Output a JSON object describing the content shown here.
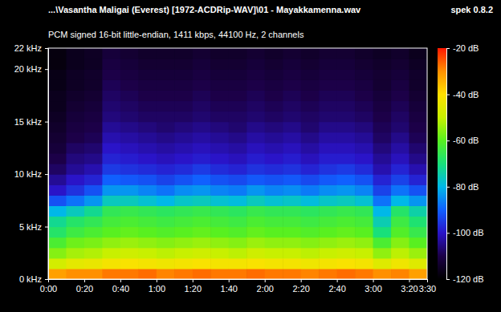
{
  "chart_data": {
    "type": "heatmap",
    "title": "...\\Vasantha Maligai (Everest) [1972-ACDRip-WAV]\\01 - Mayakkamenna.wav",
    "subtitle": "PCM signed 16-bit little-endian, 1411 kbps, 44100 Hz, 2 channels",
    "annotation": "spek 0.8.2",
    "xlim": [
      0,
      210
    ],
    "ylim": [
      0,
      22
    ],
    "xticks": [
      {
        "value": 0,
        "label": "0:00"
      },
      {
        "value": 20,
        "label": "0:20"
      },
      {
        "value": 40,
        "label": "0:40"
      },
      {
        "value": 60,
        "label": "1:00"
      },
      {
        "value": 80,
        "label": "1:20"
      },
      {
        "value": 100,
        "label": "1:40"
      },
      {
        "value": 120,
        "label": "2:00"
      },
      {
        "value": 140,
        "label": "2:20"
      },
      {
        "value": 160,
        "label": "2:40"
      },
      {
        "value": 180,
        "label": "3:00"
      },
      {
        "value": 200,
        "label": "3:20"
      },
      {
        "value": 210,
        "label": "3:30"
      }
    ],
    "yticks": [
      {
        "value": 0,
        "label": "0 kHz"
      },
      {
        "value": 5,
        "label": "5 kHz"
      },
      {
        "value": 10,
        "label": "10 kHz"
      },
      {
        "value": 15,
        "label": "15 kHz"
      },
      {
        "value": 20,
        "label": "20 kHz"
      },
      {
        "value": 22,
        "label": "22 kHz"
      }
    ],
    "x_edges": [
      0,
      10,
      20,
      30,
      40,
      50,
      60,
      70,
      80,
      90,
      100,
      110,
      120,
      130,
      140,
      150,
      160,
      170,
      180,
      190,
      200,
      210
    ],
    "y_edges": [
      0,
      1,
      2,
      3,
      4,
      5,
      6,
      7,
      8,
      9,
      10,
      11,
      12,
      13,
      14,
      15,
      16,
      17,
      18,
      19,
      20,
      21,
      22
    ],
    "cells": [
      [
        -32,
        -48,
        -56,
        -62,
        -68,
        -72,
        -80,
        -92,
        -100,
        -104,
        -108,
        -110,
        -112,
        -113,
        -114,
        -115,
        -116,
        -116,
        -117,
        -117,
        -118,
        -118
      ],
      [
        -30,
        -45,
        -53,
        -58,
        -64,
        -68,
        -76,
        -88,
        -96,
        -100,
        -104,
        -106,
        -108,
        -110,
        -111,
        -112,
        -113,
        -114,
        -115,
        -115,
        -116,
        -116
      ],
      [
        -30,
        -44,
        -52,
        -57,
        -62,
        -66,
        -72,
        -84,
        -92,
        -98,
        -102,
        -105,
        -107,
        -109,
        -110,
        -111,
        -112,
        -113,
        -114,
        -114,
        -115,
        -115
      ],
      [
        -28,
        -42,
        -50,
        -55,
        -60,
        -63,
        -66,
        -76,
        -84,
        -90,
        -95,
        -98,
        -100,
        -102,
        -104,
        -106,
        -107,
        -108,
        -109,
        -110,
        -111,
        -112
      ],
      [
        -28,
        -41,
        -49,
        -54,
        -59,
        -62,
        -65,
        -76,
        -84,
        -91,
        -96,
        -99,
        -101,
        -103,
        -105,
        -107,
        -108,
        -109,
        -110,
        -111,
        -112,
        -113
      ],
      [
        -27,
        -42,
        -50,
        -55,
        -60,
        -63,
        -66,
        -78,
        -86,
        -92,
        -97,
        -100,
        -102,
        -104,
        -106,
        -108,
        -109,
        -110,
        -111,
        -112,
        -113,
        -114
      ],
      [
        -29,
        -43,
        -51,
        -56,
        -61,
        -64,
        -67,
        -80,
        -88,
        -94,
        -98,
        -101,
        -103,
        -105,
        -107,
        -108,
        -109,
        -110,
        -111,
        -112,
        -113,
        -114
      ],
      [
        -28,
        -42,
        -50,
        -55,
        -60,
        -63,
        -66,
        -77,
        -85,
        -92,
        -97,
        -100,
        -102,
        -104,
        -106,
        -108,
        -109,
        -110,
        -111,
        -112,
        -113,
        -114
      ],
      [
        -27,
        -41,
        -49,
        -54,
        -59,
        -62,
        -65,
        -76,
        -84,
        -90,
        -95,
        -99,
        -101,
        -103,
        -105,
        -107,
        -108,
        -109,
        -110,
        -111,
        -112,
        -113
      ],
      [
        -28,
        -42,
        -50,
        -55,
        -60,
        -63,
        -66,
        -78,
        -86,
        -92,
        -97,
        -100,
        -102,
        -104,
        -106,
        -108,
        -109,
        -110,
        -111,
        -112,
        -113,
        -114
      ],
      [
        -28,
        -42,
        -51,
        -56,
        -61,
        -64,
        -67,
        -79,
        -87,
        -93,
        -98,
        -101,
        -103,
        -105,
        -107,
        -108,
        -109,
        -110,
        -111,
        -112,
        -113,
        -114
      ],
      [
        -27,
        -41,
        -49,
        -54,
        -59,
        -62,
        -65,
        -76,
        -84,
        -91,
        -96,
        -99,
        -101,
        -103,
        -105,
        -107,
        -108,
        -109,
        -110,
        -111,
        -112,
        -113
      ],
      [
        -28,
        -42,
        -50,
        -55,
        -60,
        -63,
        -66,
        -78,
        -86,
        -92,
        -97,
        -100,
        -102,
        -104,
        -106,
        -108,
        -109,
        -110,
        -111,
        -112,
        -113,
        -114
      ],
      [
        -28,
        -42,
        -50,
        -55,
        -60,
        -63,
        -66,
        -77,
        -85,
        -91,
        -96,
        -99,
        -101,
        -103,
        -105,
        -107,
        -108,
        -109,
        -110,
        -111,
        -112,
        -113
      ],
      [
        -29,
        -43,
        -51,
        -56,
        -61,
        -64,
        -67,
        -79,
        -87,
        -93,
        -98,
        -101,
        -103,
        -105,
        -107,
        -108,
        -109,
        -110,
        -111,
        -112,
        -113,
        -114
      ],
      [
        -28,
        -42,
        -50,
        -55,
        -60,
        -63,
        -66,
        -77,
        -85,
        -91,
        -96,
        -99,
        -101,
        -103,
        -105,
        -107,
        -108,
        -109,
        -110,
        -111,
        -112,
        -113
      ],
      [
        -27,
        -41,
        -49,
        -54,
        -59,
        -62,
        -65,
        -76,
        -84,
        -90,
        -95,
        -99,
        -101,
        -103,
        -105,
        -107,
        -108,
        -109,
        -110,
        -111,
        -112,
        -113
      ],
      [
        -28,
        -42,
        -50,
        -55,
        -60,
        -63,
        -66,
        -78,
        -86,
        -92,
        -97,
        -100,
        -102,
        -104,
        -106,
        -108,
        -109,
        -110,
        -111,
        -112,
        -113,
        -114
      ],
      [
        -30,
        -46,
        -55,
        -62,
        -70,
        -75,
        -80,
        -88,
        -94,
        -98,
        -102,
        -104,
        -106,
        -108,
        -109,
        -110,
        -111,
        -112,
        -113,
        -113,
        -114,
        -115
      ],
      [
        -29,
        -43,
        -51,
        -56,
        -61,
        -64,
        -68,
        -80,
        -88,
        -94,
        -98,
        -101,
        -103,
        -105,
        -107,
        -108,
        -109,
        -110,
        -111,
        -112,
        -113,
        -114
      ],
      [
        -32,
        -46,
        -54,
        -60,
        -65,
        -69,
        -74,
        -84,
        -92,
        -98,
        -102,
        -105,
        -107,
        -109,
        -110,
        -111,
        -112,
        -113,
        -114,
        -114,
        -115,
        -116
      ]
    ],
    "colorbar": {
      "range": [
        -120,
        -20
      ],
      "ticks": [
        {
          "value": -20,
          "label": "-20 dB"
        },
        {
          "value": -40,
          "label": "-40 dB"
        },
        {
          "value": -60,
          "label": "-60 dB"
        },
        {
          "value": -80,
          "label": "-80 dB"
        },
        {
          "value": -100,
          "label": "-100 dB"
        },
        {
          "value": -120,
          "label": "-120 dB"
        }
      ]
    }
  }
}
